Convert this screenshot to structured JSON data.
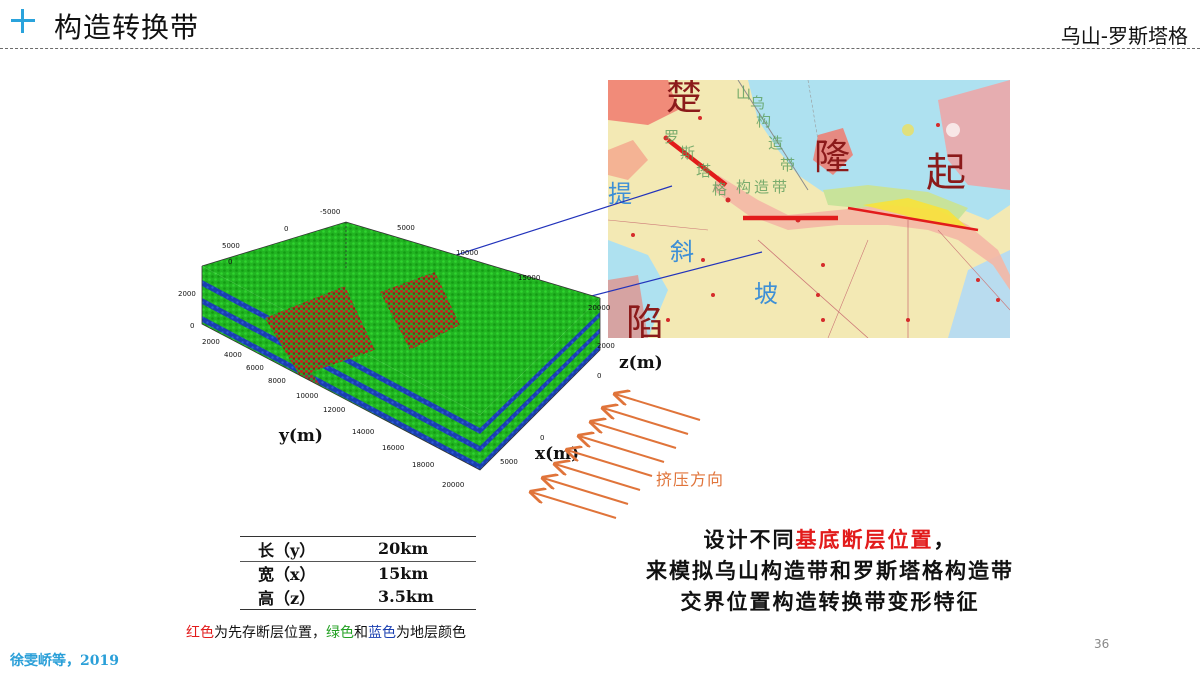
{
  "header": {
    "title": "构造转换带",
    "region": "乌山-罗斯塔格"
  },
  "map": {
    "large_chars": [
      "楚",
      "隆",
      "起",
      "陷"
    ],
    "blue_chars": [
      "提",
      "斜",
      "坡"
    ],
    "belt_chars": [
      "罗",
      "斯",
      "塔",
      "格",
      "构",
      "造",
      "带",
      "乌",
      "山",
      "构",
      "造",
      "带"
    ],
    "colors": {
      "lake": "#aee1f0",
      "land": "#f3e9b4",
      "fault": "#e21b1b"
    }
  },
  "model": {
    "x_label": "x(m)",
    "y_label": "y(m)",
    "z_label": "z(m)",
    "top_ticks": [
      "-5000",
      "0",
      "5000",
      "10000",
      "15000",
      "20000"
    ],
    "left_ticks": [
      "5000",
      "0"
    ],
    "left_z_ticks": [
      "2000",
      "0"
    ],
    "right_z_ticks": [
      "2000",
      "0"
    ],
    "y_ticks": [
      "2000",
      "4000",
      "6000",
      "8000",
      "10000",
      "12000",
      "14000",
      "16000",
      "18000",
      "20000"
    ],
    "x_ticks": [
      "0",
      "5000"
    ],
    "colors": {
      "layer_green": "#22b422",
      "layer_blue": "#1a3fb0",
      "fault": "#c81e1e"
    }
  },
  "compression": {
    "label": "挤压方向",
    "color": "#e0743a"
  },
  "dimensions": {
    "rows": [
      {
        "label": "长（y）",
        "value": "20km"
      },
      {
        "label": "宽（x）",
        "value": "15km"
      },
      {
        "label": "高（z）",
        "value": "3.5km"
      }
    ]
  },
  "legend": {
    "red": "红色",
    "part1": "为先存断层位置，",
    "green": "绿色",
    "and": "和",
    "blue": "蓝色",
    "part2": "为地层颜色"
  },
  "summary": {
    "line1_pre": "设计不同",
    "line1_red": "基底断层位置",
    "line1_post": "，",
    "line2": "来模拟乌山构造带和罗斯塔格构造带",
    "line3": "交界位置构造转换带变形特征"
  },
  "citation": "徐雯峤等，2019",
  "page_number": "36"
}
